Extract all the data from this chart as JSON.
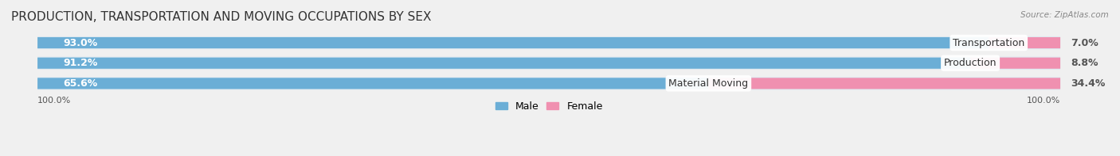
{
  "title": "PRODUCTION, TRANSPORTATION AND MOVING OCCUPATIONS BY SEX",
  "source": "Source: ZipAtlas.com",
  "categories": [
    "Transportation",
    "Production",
    "Material Moving"
  ],
  "male_values": [
    93.0,
    91.2,
    65.6
  ],
  "female_values": [
    7.0,
    8.8,
    34.4
  ],
  "male_labels": [
    "93.0%",
    "91.2%",
    "65.6%"
  ],
  "female_labels": [
    "7.0%",
    "8.8%",
    "34.4%"
  ],
  "male_color_dark": "#6baed6",
  "male_color_light": "#c6dbef",
  "female_color_dark": "#f090b0",
  "female_color_light": "#fcc5d8",
  "bg_color": "#f0f0f0",
  "bar_bg": "#e8e8e8",
  "axis_label_left": "100.0%",
  "axis_label_right": "100.0%",
  "legend_male": "Male",
  "legend_female": "Female",
  "title_fontsize": 11,
  "label_fontsize": 9,
  "cat_fontsize": 9
}
